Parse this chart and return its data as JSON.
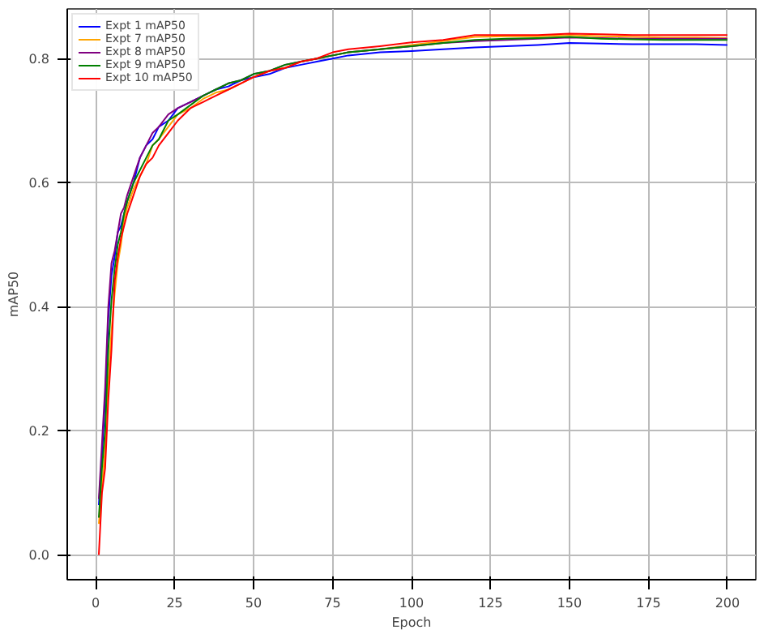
{
  "chart_data": {
    "type": "line",
    "xlabel": "Epoch",
    "ylabel": "mAP50",
    "x": [
      1,
      2,
      3,
      4,
      5,
      6,
      7,
      8,
      9,
      10,
      12,
      14,
      16,
      18,
      20,
      23,
      26,
      30,
      34,
      38,
      42,
      46,
      50,
      55,
      60,
      65,
      70,
      75,
      80,
      90,
      100,
      110,
      120,
      130,
      140,
      150,
      160,
      170,
      180,
      190,
      200
    ],
    "series": [
      {
        "name": "Expt 1 mAP50",
        "color": "#0000ff",
        "values": [
          0.08,
          0.16,
          0.25,
          0.38,
          0.45,
          0.48,
          0.52,
          0.53,
          0.55,
          0.57,
          0.6,
          0.64,
          0.66,
          0.67,
          0.69,
          0.7,
          0.72,
          0.73,
          0.74,
          0.75,
          0.755,
          0.765,
          0.77,
          0.775,
          0.785,
          0.79,
          0.795,
          0.8,
          0.805,
          0.81,
          0.812,
          0.815,
          0.818,
          0.82,
          0.822,
          0.825,
          0.824,
          0.823,
          0.823,
          0.823,
          0.822
        ]
      },
      {
        "name": "Expt 7 mAP50",
        "color": "#ffa500",
        "values": [
          0.05,
          0.11,
          0.17,
          0.28,
          0.36,
          0.42,
          0.47,
          0.5,
          0.54,
          0.56,
          0.59,
          0.61,
          0.63,
          0.66,
          0.67,
          0.69,
          0.71,
          0.72,
          0.735,
          0.745,
          0.75,
          0.76,
          0.77,
          0.78,
          0.785,
          0.795,
          0.8,
          0.805,
          0.81,
          0.815,
          0.822,
          0.828,
          0.835,
          0.836,
          0.836,
          0.838,
          0.836,
          0.835,
          0.834,
          0.834,
          0.833
        ]
      },
      {
        "name": "Expt 8 mAP50",
        "color": "#800080",
        "values": [
          0.09,
          0.18,
          0.27,
          0.4,
          0.47,
          0.49,
          0.52,
          0.55,
          0.56,
          0.58,
          0.61,
          0.64,
          0.66,
          0.68,
          0.69,
          0.71,
          0.72,
          0.73,
          0.74,
          0.75,
          0.76,
          0.765,
          0.775,
          0.78,
          0.79,
          0.795,
          0.8,
          0.805,
          0.81,
          0.815,
          0.82,
          0.825,
          0.828,
          0.83,
          0.832,
          0.834,
          0.833,
          0.832,
          0.832,
          0.832,
          0.832
        ]
      },
      {
        "name": "Expt 9 mAP50",
        "color": "#008000",
        "values": [
          0.06,
          0.14,
          0.2,
          0.33,
          0.41,
          0.46,
          0.5,
          0.52,
          0.55,
          0.57,
          0.6,
          0.62,
          0.64,
          0.66,
          0.67,
          0.7,
          0.71,
          0.725,
          0.74,
          0.75,
          0.76,
          0.765,
          0.775,
          0.78,
          0.79,
          0.795,
          0.8,
          0.805,
          0.81,
          0.815,
          0.82,
          0.825,
          0.83,
          0.832,
          0.833,
          0.835,
          0.832,
          0.831,
          0.83,
          0.83,
          0.83
        ]
      },
      {
        "name": "Expt 10 mAP50",
        "color": "#ff0000",
        "values": [
          0.0,
          0.1,
          0.14,
          0.25,
          0.33,
          0.44,
          0.48,
          0.51,
          0.53,
          0.55,
          0.58,
          0.61,
          0.63,
          0.64,
          0.66,
          0.68,
          0.7,
          0.72,
          0.73,
          0.74,
          0.75,
          0.76,
          0.77,
          0.78,
          0.785,
          0.795,
          0.8,
          0.81,
          0.815,
          0.82,
          0.826,
          0.83,
          0.838,
          0.838,
          0.838,
          0.84,
          0.839,
          0.838,
          0.838,
          0.838,
          0.838
        ]
      }
    ],
    "xlim": [
      -9,
      209
    ],
    "ylim": [
      -0.04,
      0.88
    ],
    "xticks": [
      0,
      25,
      50,
      75,
      100,
      125,
      150,
      175,
      200
    ],
    "yticks": [
      {
        "value": 0,
        "label": "0.0"
      },
      {
        "value": 0.2,
        "label": "0.2"
      },
      {
        "value": 0.4,
        "label": "0.4"
      },
      {
        "value": 0.6,
        "label": "0.6"
      },
      {
        "value": 0.8,
        "label": "0.8"
      }
    ],
    "grid": true,
    "legend": "top left",
    "line_style": "solid"
  }
}
